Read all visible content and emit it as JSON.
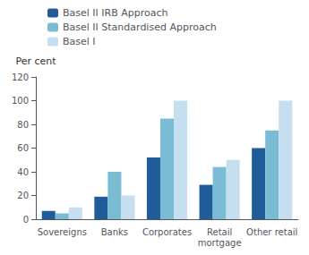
{
  "chart_data": {
    "type": "bar",
    "ylabel": "Per cent",
    "categories": [
      "Sovereigns",
      "Banks",
      "Corporates",
      "Retail\nmortgage",
      "Other retail"
    ],
    "series": [
      {
        "name": "Basel II IRB Approach",
        "color": "#1f5c99",
        "values": [
          7,
          19,
          52,
          29,
          60
        ]
      },
      {
        "name": "Basel II Standardised Approach",
        "color": "#7bbcd5",
        "values": [
          5,
          40,
          85,
          44,
          75
        ]
      },
      {
        "name": "Basel I",
        "color": "#c5dff0",
        "values": [
          10,
          20,
          100,
          50,
          100
        ]
      }
    ],
    "ylim": [
      0,
      120
    ],
    "yticks": [
      0,
      20,
      40,
      60,
      80,
      100,
      120
    ],
    "grid": false,
    "legend": "upper left"
  }
}
